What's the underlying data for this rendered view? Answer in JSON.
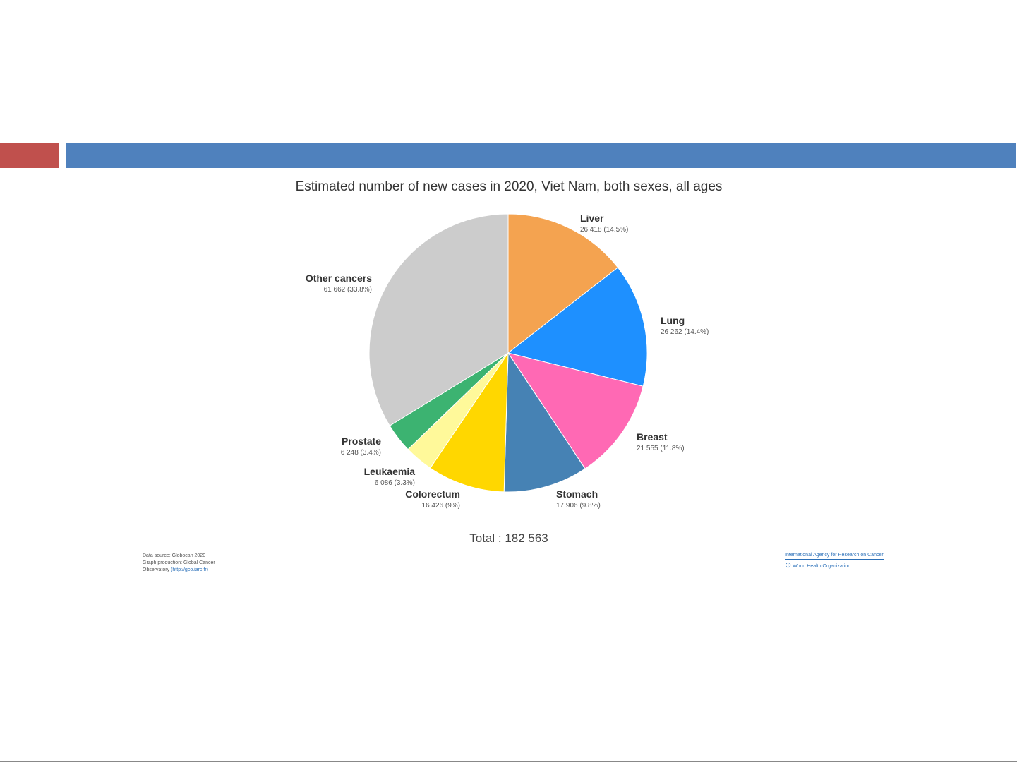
{
  "chart_data": {
    "type": "pie",
    "title": "Estimated number of new cases in 2020, Viet Nam, both sexes, all ages",
    "total_label": "Total : 182 563",
    "slices": [
      {
        "name": "Liver",
        "value": 26418,
        "value_label": "26 418 (14.5%)",
        "color": "#f4a350"
      },
      {
        "name": "Lung",
        "value": 26262,
        "value_label": "26 262 (14.4%)",
        "color": "#1e90ff"
      },
      {
        "name": "Breast",
        "value": 21555,
        "value_label": "21 555 (11.8%)",
        "color": "#ff69b4"
      },
      {
        "name": "Stomach",
        "value": 17906,
        "value_label": "17 906 (9.8%)",
        "color": "#4682b4"
      },
      {
        "name": "Colorectum",
        "value": 16426,
        "value_label": "16 426 (9%)",
        "color": "#ffd700"
      },
      {
        "name": "Leukaemia",
        "value": 6086,
        "value_label": "6 086 (3.3%)",
        "color": "#fff99a"
      },
      {
        "name": "Prostate",
        "value": 6248,
        "value_label": "6 248 (3.4%)",
        "color": "#3cb371"
      },
      {
        "name": "Other cancers",
        "value": 61662,
        "value_label": "61 662 (33.8%)",
        "color": "#cccccc"
      }
    ]
  },
  "footer": {
    "source_lines": [
      "Data source: Globocan 2020",
      "Graph production: Global Cancer",
      "Observatory"
    ],
    "source_link": "(http://gco.iarc.fr)",
    "agency": "International Agency for Research on Cancer",
    "who": "World Health Organization"
  },
  "slide": {
    "accent_red": "#c0504d",
    "accent_blue": "#4f81bd"
  }
}
